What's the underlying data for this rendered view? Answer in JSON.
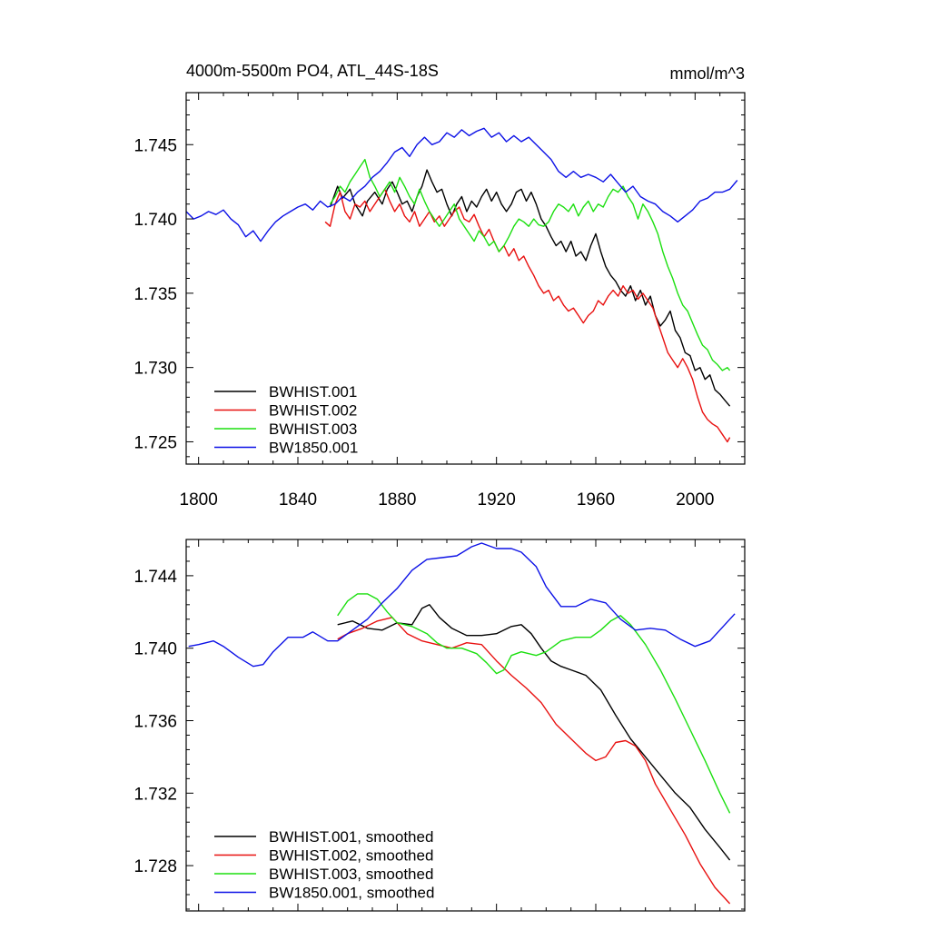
{
  "chart_data": [
    {
      "type": "line",
      "title": "4000m-5500m PO4, ATL_44S-18S",
      "units": "mmol/m^3",
      "xlim": [
        1795,
        2020
      ],
      "ylim": [
        1.7235,
        1.7485
      ],
      "xticks": [
        1800,
        1840,
        1880,
        1920,
        1960,
        2000
      ],
      "xtick_labels": [
        "1800",
        "1840",
        "1880",
        "1920",
        "1960",
        "2000"
      ],
      "yticks": [
        1.725,
        1.73,
        1.735,
        1.74,
        1.745
      ],
      "ytick_labels": [
        "1.725",
        "1.730",
        "1.735",
        "1.740",
        "1.745"
      ],
      "legend_placement": "bottom-left",
      "grid": false,
      "series": [
        {
          "name": "BWHIST.001",
          "color": "#000000",
          "x": [
            1853,
            1856,
            1858,
            1861,
            1863,
            1866,
            1868,
            1871,
            1874,
            1876,
            1878,
            1880,
            1882,
            1884,
            1886,
            1888,
            1890,
            1892,
            1894,
            1896,
            1898,
            1900,
            1902,
            1904,
            1906,
            1908,
            1910,
            1912,
            1914,
            1916,
            1918,
            1920,
            1922,
            1924,
            1926,
            1928,
            1930,
            1932,
            1934,
            1936,
            1938,
            1940,
            1942,
            1944,
            1946,
            1948,
            1950,
            1952,
            1954,
            1956,
            1958,
            1960,
            1962,
            1964,
            1966,
            1968,
            1970,
            1972,
            1974,
            1976,
            1978,
            1980,
            1982,
            1984,
            1986,
            1988,
            1990,
            1992,
            1994,
            1996,
            1998,
            2000,
            2002,
            2004,
            2006,
            2008,
            2010,
            2012,
            2014
          ],
          "y": [
            1.7408,
            1.7422,
            1.7414,
            1.742,
            1.741,
            1.7402,
            1.7412,
            1.7418,
            1.741,
            1.742,
            1.7425,
            1.7418,
            1.741,
            1.7412,
            1.7405,
            1.7415,
            1.7422,
            1.7433,
            1.7425,
            1.7418,
            1.742,
            1.741,
            1.7402,
            1.741,
            1.7415,
            1.7405,
            1.7412,
            1.7408,
            1.7415,
            1.742,
            1.7412,
            1.7418,
            1.741,
            1.7405,
            1.741,
            1.7418,
            1.742,
            1.7412,
            1.7418,
            1.741,
            1.74,
            1.7395,
            1.7388,
            1.7382,
            1.7385,
            1.7378,
            1.7385,
            1.7375,
            1.7378,
            1.7372,
            1.7382,
            1.739,
            1.7378,
            1.7368,
            1.7362,
            1.7358,
            1.7352,
            1.7348,
            1.7355,
            1.7345,
            1.7352,
            1.7342,
            1.7348,
            1.7335,
            1.7328,
            1.7332,
            1.7338,
            1.7325,
            1.732,
            1.731,
            1.7308,
            1.7298,
            1.73,
            1.7292,
            1.7295,
            1.7285,
            1.7282,
            1.7278,
            1.7274
          ]
        },
        {
          "name": "BWHIST.002",
          "color": "#e8100f",
          "x": [
            1851,
            1853,
            1855,
            1857,
            1859,
            1861,
            1863,
            1865,
            1867,
            1869,
            1871,
            1873,
            1875,
            1877,
            1879,
            1881,
            1883,
            1885,
            1887,
            1889,
            1891,
            1893,
            1895,
            1897,
            1899,
            1901,
            1903,
            1905,
            1907,
            1909,
            1911,
            1913,
            1915,
            1917,
            1919,
            1921,
            1923,
            1925,
            1927,
            1929,
            1931,
            1933,
            1935,
            1937,
            1939,
            1941,
            1943,
            1945,
            1947,
            1949,
            1951,
            1953,
            1955,
            1957,
            1959,
            1961,
            1963,
            1965,
            1967,
            1969,
            1971,
            1973,
            1975,
            1977,
            1979,
            1981,
            1983,
            1985,
            1987,
            1989,
            1991,
            1993,
            1995,
            1997,
            1999,
            2001,
            2003,
            2005,
            2007,
            2009,
            2011,
            2013,
            2014
          ],
          "y": [
            1.7398,
            1.7395,
            1.741,
            1.7418,
            1.7405,
            1.74,
            1.741,
            1.7408,
            1.7412,
            1.7405,
            1.741,
            1.7415,
            1.742,
            1.7412,
            1.7405,
            1.741,
            1.7402,
            1.7398,
            1.7405,
            1.7395,
            1.74,
            1.7405,
            1.7398,
            1.7402,
            1.7395,
            1.74,
            1.7405,
            1.7408,
            1.74,
            1.7398,
            1.7403,
            1.7395,
            1.7388,
            1.7393,
            1.7385,
            1.7378,
            1.7382,
            1.7375,
            1.738,
            1.7372,
            1.7375,
            1.7368,
            1.7362,
            1.7355,
            1.735,
            1.7352,
            1.7345,
            1.7348,
            1.7342,
            1.7338,
            1.734,
            1.7335,
            1.733,
            1.7335,
            1.7338,
            1.7345,
            1.7342,
            1.7348,
            1.7352,
            1.7348,
            1.7355,
            1.735,
            1.7352,
            1.7346,
            1.735,
            1.7345,
            1.734,
            1.733,
            1.732,
            1.731,
            1.7305,
            1.73,
            1.7306,
            1.73,
            1.7292,
            1.728,
            1.727,
            1.7265,
            1.7262,
            1.726,
            1.7255,
            1.725,
            1.7253
          ]
        },
        {
          "name": "BWHIST.003",
          "color": "#1bdf0f",
          "x": [
            1853,
            1855,
            1857,
            1859,
            1861,
            1863,
            1865,
            1867,
            1869,
            1871,
            1873,
            1875,
            1877,
            1879,
            1881,
            1883,
            1885,
            1887,
            1889,
            1891,
            1893,
            1895,
            1897,
            1899,
            1901,
            1903,
            1905,
            1907,
            1909,
            1911,
            1913,
            1915,
            1917,
            1919,
            1921,
            1923,
            1925,
            1927,
            1929,
            1931,
            1933,
            1935,
            1937,
            1939,
            1941,
            1943,
            1945,
            1947,
            1949,
            1951,
            1953,
            1955,
            1957,
            1959,
            1961,
            1963,
            1965,
            1967,
            1969,
            1971,
            1973,
            1975,
            1977,
            1979,
            1981,
            1983,
            1985,
            1987,
            1989,
            1991,
            1993,
            1995,
            1997,
            1999,
            2001,
            2003,
            2005,
            2007,
            2009,
            2011,
            2013,
            2014
          ],
          "y": [
            1.741,
            1.7415,
            1.7422,
            1.7418,
            1.7425,
            1.743,
            1.7435,
            1.744,
            1.7428,
            1.7422,
            1.7415,
            1.742,
            1.7425,
            1.7418,
            1.7428,
            1.7422,
            1.7415,
            1.741,
            1.742,
            1.7412,
            1.7405,
            1.74,
            1.7395,
            1.74,
            1.7405,
            1.741,
            1.74,
            1.7395,
            1.739,
            1.7385,
            1.7392,
            1.7388,
            1.7382,
            1.7385,
            1.7378,
            1.7382,
            1.7388,
            1.7395,
            1.74,
            1.7398,
            1.7395,
            1.74,
            1.7396,
            1.7395,
            1.7398,
            1.7405,
            1.741,
            1.7408,
            1.7405,
            1.741,
            1.7402,
            1.7408,
            1.7412,
            1.7405,
            1.741,
            1.7408,
            1.7415,
            1.742,
            1.7418,
            1.7422,
            1.7415,
            1.741,
            1.74,
            1.741,
            1.7405,
            1.7398,
            1.739,
            1.7378,
            1.7368,
            1.736,
            1.735,
            1.7342,
            1.7338,
            1.733,
            1.7322,
            1.7315,
            1.7312,
            1.7305,
            1.7302,
            1.7298,
            1.73,
            1.7298
          ]
        },
        {
          "name": "BW1850.001",
          "color": "#0c11e6",
          "x": [
            1795,
            1798,
            1801,
            1804,
            1807,
            1810,
            1813,
            1816,
            1819,
            1822,
            1825,
            1828,
            1831,
            1834,
            1837,
            1840,
            1843,
            1846,
            1849,
            1852,
            1855,
            1858,
            1861,
            1864,
            1867,
            1870,
            1873,
            1876,
            1879,
            1882,
            1885,
            1888,
            1891,
            1894,
            1897,
            1900,
            1903,
            1906,
            1909,
            1912,
            1915,
            1918,
            1921,
            1924,
            1927,
            1930,
            1933,
            1936,
            1939,
            1942,
            1945,
            1948,
            1951,
            1954,
            1957,
            1960,
            1963,
            1966,
            1969,
            1972,
            1975,
            1978,
            1981,
            1984,
            1987,
            1990,
            1993,
            1996,
            1999,
            2002,
            2005,
            2008,
            2011,
            2014,
            2017
          ],
          "y": [
            1.7405,
            1.74,
            1.7402,
            1.7405,
            1.7403,
            1.7406,
            1.74,
            1.7396,
            1.7388,
            1.7392,
            1.7385,
            1.7392,
            1.7398,
            1.7402,
            1.7405,
            1.7408,
            1.741,
            1.7406,
            1.7412,
            1.7408,
            1.741,
            1.7415,
            1.7412,
            1.7418,
            1.7422,
            1.7428,
            1.7432,
            1.7438,
            1.7445,
            1.7448,
            1.7442,
            1.745,
            1.7455,
            1.745,
            1.7452,
            1.7458,
            1.7455,
            1.746,
            1.7456,
            1.7459,
            1.7461,
            1.7455,
            1.7458,
            1.7452,
            1.7456,
            1.7452,
            1.7455,
            1.745,
            1.7445,
            1.744,
            1.7432,
            1.7428,
            1.7432,
            1.7428,
            1.743,
            1.7428,
            1.7425,
            1.743,
            1.7424,
            1.7418,
            1.7422,
            1.7415,
            1.7412,
            1.741,
            1.7405,
            1.7402,
            1.7398,
            1.7402,
            1.7406,
            1.7412,
            1.7414,
            1.7418,
            1.7418,
            1.742,
            1.7426
          ]
        }
      ]
    },
    {
      "type": "line",
      "xlim": [
        1795,
        2020
      ],
      "ylim": [
        1.7255,
        1.746
      ],
      "xticks": [
        1800,
        1840,
        1880,
        1920,
        1960,
        2000
      ],
      "yticks": [
        1.728,
        1.732,
        1.736,
        1.74,
        1.744
      ],
      "ytick_labels": [
        "1.728",
        "1.732",
        "1.736",
        "1.740",
        "1.744"
      ],
      "legend_placement": "bottom-left",
      "grid": false,
      "series": [
        {
          "name": "BWHIST.001, smoothed",
          "color": "#000000",
          "x": [
            1856,
            1862,
            1868,
            1874,
            1880,
            1886,
            1890,
            1893,
            1897,
            1902,
            1908,
            1914,
            1920,
            1926,
            1930,
            1934,
            1938,
            1942,
            1946,
            1950,
            1956,
            1962,
            1968,
            1974,
            1980,
            1986,
            1992,
            1998,
            2004,
            2010,
            2014
          ],
          "y": [
            1.7413,
            1.7415,
            1.7411,
            1.741,
            1.7414,
            1.7413,
            1.7422,
            1.7424,
            1.7417,
            1.7411,
            1.7407,
            1.7407,
            1.7408,
            1.7412,
            1.7413,
            1.7408,
            1.74,
            1.7393,
            1.739,
            1.7388,
            1.7385,
            1.7377,
            1.7363,
            1.735,
            1.734,
            1.733,
            1.732,
            1.7312,
            1.73,
            1.729,
            1.7283
          ]
        },
        {
          "name": "BWHIST.002, smoothed",
          "color": "#e8100f",
          "x": [
            1856,
            1860,
            1866,
            1872,
            1878,
            1884,
            1890,
            1896,
            1902,
            1908,
            1914,
            1920,
            1926,
            1932,
            1938,
            1944,
            1950,
            1956,
            1960,
            1964,
            1968,
            1972,
            1976,
            1980,
            1984,
            1990,
            1996,
            2002,
            2008,
            2012,
            2014
          ],
          "y": [
            1.7405,
            1.7408,
            1.7411,
            1.7415,
            1.7417,
            1.7408,
            1.7404,
            1.7402,
            1.74,
            1.7403,
            1.7402,
            1.7393,
            1.7385,
            1.7378,
            1.737,
            1.7358,
            1.735,
            1.7342,
            1.7338,
            1.734,
            1.7348,
            1.7349,
            1.7346,
            1.7338,
            1.7325,
            1.7311,
            1.7297,
            1.7281,
            1.7268,
            1.7262,
            1.7259
          ]
        },
        {
          "name": "BWHIST.003, smoothed",
          "color": "#1bdf0f",
          "x": [
            1856,
            1860,
            1864,
            1868,
            1872,
            1876,
            1880,
            1886,
            1892,
            1896,
            1900,
            1906,
            1912,
            1916,
            1920,
            1923,
            1926,
            1930,
            1936,
            1940,
            1946,
            1952,
            1958,
            1962,
            1966,
            1970,
            1974,
            1980,
            1986,
            1992,
            1998,
            2004,
            2010,
            2014
          ],
          "y": [
            1.7418,
            1.7426,
            1.743,
            1.743,
            1.7427,
            1.742,
            1.7414,
            1.7412,
            1.7408,
            1.7403,
            1.74,
            1.74,
            1.7397,
            1.7392,
            1.7386,
            1.7388,
            1.7396,
            1.7398,
            1.7396,
            1.7398,
            1.7404,
            1.7406,
            1.7406,
            1.741,
            1.7415,
            1.7418,
            1.7413,
            1.7402,
            1.7388,
            1.7372,
            1.7355,
            1.7338,
            1.732,
            1.7309
          ]
        },
        {
          "name": "BW1850.001, smoothed",
          "color": "#0c11e6",
          "x": [
            1796,
            1800,
            1806,
            1810,
            1816,
            1822,
            1826,
            1830,
            1836,
            1842,
            1846,
            1852,
            1856,
            1862,
            1868,
            1874,
            1880,
            1886,
            1892,
            1898,
            1904,
            1910,
            1914,
            1920,
            1926,
            1930,
            1936,
            1940,
            1946,
            1952,
            1958,
            1964,
            1970,
            1976,
            1982,
            1988,
            1994,
            2000,
            2006,
            2012,
            2016
          ],
          "y": [
            1.7401,
            1.7402,
            1.7404,
            1.7401,
            1.7395,
            1.739,
            1.7391,
            1.7398,
            1.7406,
            1.7406,
            1.7409,
            1.7404,
            1.7404,
            1.741,
            1.7416,
            1.7425,
            1.7433,
            1.7443,
            1.7449,
            1.745,
            1.7451,
            1.7456,
            1.7458,
            1.7455,
            1.7455,
            1.7453,
            1.7445,
            1.7434,
            1.7423,
            1.7423,
            1.7427,
            1.7425,
            1.7416,
            1.741,
            1.7411,
            1.741,
            1.7405,
            1.7401,
            1.7404,
            1.7413,
            1.7419
          ]
        }
      ]
    }
  ]
}
